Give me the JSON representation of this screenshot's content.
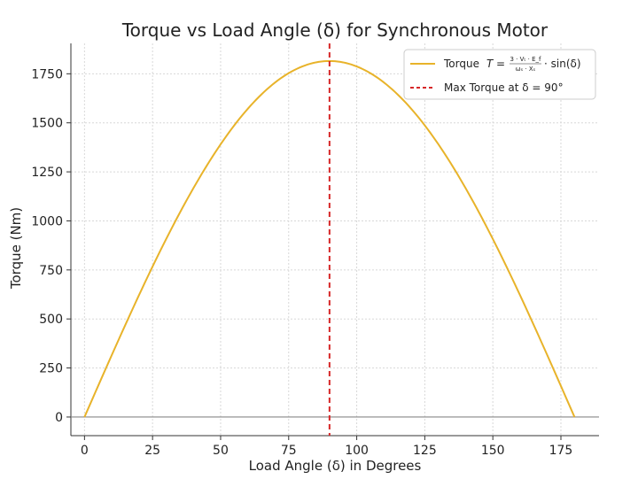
{
  "chart_data": {
    "type": "line",
    "title": "Torque vs Load Angle (δ) for Synchronous Motor",
    "xlabel": "Load Angle (δ) in Degrees",
    "ylabel": "Torque (Nm)",
    "xlim": [
      -5,
      189
    ],
    "ylim": [
      -95,
      1905
    ],
    "xticks": [
      0,
      25,
      50,
      75,
      100,
      125,
      150,
      175
    ],
    "yticks": [
      0,
      250,
      500,
      750,
      1000,
      1250,
      1500,
      1750
    ],
    "grid": true,
    "legend_position": "top-right",
    "series": [
      {
        "name": "Torque T = (3·V_t·E_f)/(ω_s·X_s)·sin(δ)",
        "kind": "sine",
        "amplitude": 1815,
        "x_start": 0,
        "x_end": 180,
        "color": "#e8b32a"
      }
    ],
    "vline": {
      "x": 90,
      "label": "Max Torque at δ = 90°",
      "color": "#d62728"
    },
    "hline": {
      "y": 0,
      "color": "#888888"
    },
    "legend": {
      "torque_prefix": "Torque",
      "torque_T": "T",
      "formula_num": "3 · Vₜ · E_f",
      "formula_den": "ωₛ · Xₛ",
      "formula_suffix": "· sin(δ)",
      "max_label": "Max Torque at δ = 90°"
    }
  }
}
